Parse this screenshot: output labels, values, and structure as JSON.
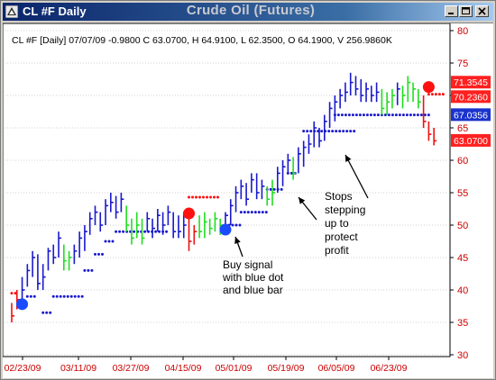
{
  "window": {
    "symbol_title": "CL #F Daily",
    "center_title": "Crude Oil (Futures)"
  },
  "quote_line": "CL #F [Daily] 07/07/09  -0.9800 C 63.0700, H 64.9100, L 62.3500, O 64.1900, V 256.9860K",
  "price_labels": [
    {
      "text": "71.3545",
      "bg": "#ff2020",
      "fg": "#ffffff",
      "value": 71.3545
    },
    {
      "text": "70.2360",
      "bg": "#ff2020",
      "fg": "#ffffff",
      "value": 70.236
    },
    {
      "text": "67.0356",
      "bg": "#1a33cc",
      "fg": "#ffffff",
      "value": 67.0356
    },
    {
      "text": "63.0700",
      "bg": "#ff2020",
      "fg": "#ffffff",
      "value": 63.07
    }
  ],
  "annotations": [
    {
      "id": "buy",
      "lines": [
        "Buy signal",
        "with blue dot",
        "and blue bar"
      ]
    },
    {
      "id": "stops",
      "lines": [
        "Stops",
        "stepping",
        "up to",
        "protect",
        "profit"
      ]
    }
  ],
  "colors": {
    "up_bar": "#1a1acc",
    "green_bar": "#22dd22",
    "red_bar": "#ee1111",
    "blue_dot": "#1a1acc",
    "red_dot": "#ff1010",
    "signal_blue": "#1a4bff",
    "signal_red": "#ff1010",
    "axis_text": "#cc0000",
    "grid": "#d0d0d0"
  },
  "chart_data": {
    "type": "candlestick-ohlc",
    "y_ticks": [
      "80",
      "75",
      "70",
      "65",
      "60",
      "55",
      "50",
      "45",
      "40",
      "35",
      "30"
    ],
    "ylim": [
      30,
      80
    ],
    "x_ticks": [
      "02/23/09",
      "03/11/09",
      "03/27/09",
      "04/15/09",
      "05/01/09",
      "05/19/09",
      "06/05/09",
      "06/23/09"
    ],
    "bars": [
      {
        "h": 38,
        "l": 35,
        "c": 36,
        "k": "red"
      },
      {
        "h": 40,
        "l": 37,
        "c": 38.5,
        "k": "red"
      },
      {
        "h": 42,
        "l": 38,
        "c": 40,
        "k": "blue"
      },
      {
        "h": 44,
        "l": 40.5,
        "c": 43,
        "k": "blue"
      },
      {
        "h": 46,
        "l": 42,
        "c": 45,
        "k": "blue"
      },
      {
        "h": 45.5,
        "l": 40,
        "c": 41,
        "k": "blue"
      },
      {
        "h": 44,
        "l": 40,
        "c": 42,
        "k": "blue"
      },
      {
        "h": 46.5,
        "l": 43,
        "c": 46,
        "k": "blue"
      },
      {
        "h": 47,
        "l": 44,
        "c": 45,
        "k": "blue"
      },
      {
        "h": 49,
        "l": 45,
        "c": 48,
        "k": "blue"
      },
      {
        "h": 47,
        "l": 43,
        "c": 44.5,
        "k": "green"
      },
      {
        "h": 46,
        "l": 43,
        "c": 45,
        "k": "green"
      },
      {
        "h": 47,
        "l": 44,
        "c": 46,
        "k": "blue"
      },
      {
        "h": 49,
        "l": 45,
        "c": 48,
        "k": "blue"
      },
      {
        "h": 50,
        "l": 46,
        "c": 49,
        "k": "blue"
      },
      {
        "h": 52,
        "l": 48.5,
        "c": 51,
        "k": "blue"
      },
      {
        "h": 53,
        "l": 50,
        "c": 52,
        "k": "blue"
      },
      {
        "h": 52,
        "l": 49,
        "c": 50,
        "k": "blue"
      },
      {
        "h": 54,
        "l": 50,
        "c": 53,
        "k": "blue"
      },
      {
        "h": 55,
        "l": 52,
        "c": 53.5,
        "k": "blue"
      },
      {
        "h": 54.5,
        "l": 51,
        "c": 52,
        "k": "blue"
      },
      {
        "h": 55,
        "l": 52,
        "c": 54,
        "k": "blue"
      },
      {
        "h": 53,
        "l": 49,
        "c": 50,
        "k": "green"
      },
      {
        "h": 51,
        "l": 47,
        "c": 48,
        "k": "green"
      },
      {
        "h": 52,
        "l": 48,
        "c": 50,
        "k": "green"
      },
      {
        "h": 51,
        "l": 47,
        "c": 48,
        "k": "green"
      },
      {
        "h": 52,
        "l": 49,
        "c": 51,
        "k": "blue"
      },
      {
        "h": 51,
        "l": 48,
        "c": 49.5,
        "k": "blue"
      },
      {
        "h": 52.5,
        "l": 49,
        "c": 51.5,
        "k": "blue"
      },
      {
        "h": 52,
        "l": 48.5,
        "c": 50,
        "k": "blue"
      },
      {
        "h": 53,
        "l": 50,
        "c": 52,
        "k": "blue"
      },
      {
        "h": 52,
        "l": 48,
        "c": 49,
        "k": "blue"
      },
      {
        "h": 51.5,
        "l": 48,
        "c": 49,
        "k": "blue"
      },
      {
        "h": 52,
        "l": 48,
        "c": 50,
        "k": "blue"
      },
      {
        "h": 51,
        "l": 46,
        "c": 47.5,
        "k": "red"
      },
      {
        "h": 50,
        "l": 47,
        "c": 49,
        "k": "red"
      },
      {
        "h": 51.5,
        "l": 48,
        "c": 49,
        "k": "green"
      },
      {
        "h": 52,
        "l": 48,
        "c": 50.5,
        "k": "green"
      },
      {
        "h": 51,
        "l": 48.5,
        "c": 49.5,
        "k": "green"
      },
      {
        "h": 52,
        "l": 49,
        "c": 51,
        "k": "green"
      },
      {
        "h": 51,
        "l": 48.5,
        "c": 50,
        "k": "green"
      },
      {
        "h": 52,
        "l": 49,
        "c": 51.5,
        "k": "blue"
      },
      {
        "h": 54,
        "l": 50,
        "c": 53,
        "k": "blue"
      },
      {
        "h": 56,
        "l": 52,
        "c": 55,
        "k": "blue"
      },
      {
        "h": 57,
        "l": 54,
        "c": 56,
        "k": "blue"
      },
      {
        "h": 56.5,
        "l": 53,
        "c": 54,
        "k": "blue"
      },
      {
        "h": 58,
        "l": 55,
        "c": 57,
        "k": "blue"
      },
      {
        "h": 58,
        "l": 54,
        "c": 55,
        "k": "blue"
      },
      {
        "h": 57,
        "l": 54,
        "c": 56,
        "k": "blue"
      },
      {
        "h": 56,
        "l": 53,
        "c": 54,
        "k": "green"
      },
      {
        "h": 57,
        "l": 53,
        "c": 55,
        "k": "green"
      },
      {
        "h": 59,
        "l": 55,
        "c": 58,
        "k": "blue"
      },
      {
        "h": 60,
        "l": 56,
        "c": 59,
        "k": "blue"
      },
      {
        "h": 61,
        "l": 58,
        "c": 60,
        "k": "blue"
      },
      {
        "h": 60.5,
        "l": 57,
        "c": 58,
        "k": "green"
      },
      {
        "h": 62,
        "l": 58,
        "c": 61,
        "k": "blue"
      },
      {
        "h": 63,
        "l": 59,
        "c": 62,
        "k": "blue"
      },
      {
        "h": 64,
        "l": 61,
        "c": 62.5,
        "k": "blue"
      },
      {
        "h": 66,
        "l": 62,
        "c": 65,
        "k": "blue"
      },
      {
        "h": 65,
        "l": 62,
        "c": 63,
        "k": "blue"
      },
      {
        "h": 67,
        "l": 63,
        "c": 66,
        "k": "blue"
      },
      {
        "h": 69,
        "l": 65,
        "c": 68,
        "k": "blue"
      },
      {
        "h": 70,
        "l": 66,
        "c": 69,
        "k": "blue"
      },
      {
        "h": 71,
        "l": 68,
        "c": 70,
        "k": "blue"
      },
      {
        "h": 72,
        "l": 69,
        "c": 70.5,
        "k": "blue"
      },
      {
        "h": 73.5,
        "l": 70,
        "c": 72,
        "k": "blue"
      },
      {
        "h": 73,
        "l": 70,
        "c": 71,
        "k": "blue"
      },
      {
        "h": 72.5,
        "l": 69,
        "c": 70,
        "k": "blue"
      },
      {
        "h": 72,
        "l": 69,
        "c": 71,
        "k": "blue"
      },
      {
        "h": 71.5,
        "l": 69,
        "c": 70,
        "k": "blue"
      },
      {
        "h": 72,
        "l": 69,
        "c": 70.5,
        "k": "blue"
      },
      {
        "h": 71,
        "l": 67,
        "c": 68,
        "k": "green"
      },
      {
        "h": 70.5,
        "l": 67,
        "c": 69,
        "k": "green"
      },
      {
        "h": 71,
        "l": 68,
        "c": 70,
        "k": "green"
      },
      {
        "h": 72,
        "l": 68.5,
        "c": 71,
        "k": "blue"
      },
      {
        "h": 71.5,
        "l": 68,
        "c": 70,
        "k": "green"
      },
      {
        "h": 73,
        "l": 69,
        "c": 72,
        "k": "green"
      },
      {
        "h": 72,
        "l": 69,
        "c": 71,
        "k": "green"
      },
      {
        "h": 71,
        "l": 68,
        "c": 69,
        "k": "green"
      },
      {
        "h": 70,
        "l": 65,
        "c": 66,
        "k": "red"
      },
      {
        "h": 66,
        "l": 63,
        "c": 64,
        "k": "red"
      },
      {
        "h": 65,
        "l": 62.3,
        "c": 63,
        "k": "red"
      }
    ],
    "stop_segments": [
      {
        "from": 0,
        "to": 1,
        "y": 39.5,
        "c": "red"
      },
      {
        "from": 3,
        "to": 5,
        "y": 39,
        "c": "blue"
      },
      {
        "from": 6,
        "to": 8,
        "y": 36.5,
        "c": "blue"
      },
      {
        "from": 8,
        "to": 14,
        "y": 39,
        "c": "blue"
      },
      {
        "from": 14,
        "to": 16,
        "y": 43,
        "c": "blue"
      },
      {
        "from": 16,
        "to": 18,
        "y": 45.5,
        "c": "blue"
      },
      {
        "from": 18,
        "to": 20,
        "y": 47.5,
        "c": "blue"
      },
      {
        "from": 20,
        "to": 30,
        "y": 49,
        "c": "blue"
      },
      {
        "from": 34,
        "to": 40,
        "y": 54.3,
        "c": "red"
      },
      {
        "from": 41,
        "to": 44,
        "y": 50,
        "c": "blue"
      },
      {
        "from": 44,
        "to": 49,
        "y": 52,
        "c": "blue"
      },
      {
        "from": 49,
        "to": 52,
        "y": 55.5,
        "c": "blue"
      },
      {
        "from": 53,
        "to": 55,
        "y": 58,
        "c": "blue"
      },
      {
        "from": 56,
        "to": 66,
        "y": 64.5,
        "c": "blue"
      },
      {
        "from": 62,
        "to": 80,
        "y": 67,
        "c": "blue"
      },
      {
        "from": 80,
        "to": 83,
        "y": 70.2,
        "c": "red"
      }
    ],
    "signals": [
      {
        "bar": 2,
        "y": 37.8,
        "c": "blue"
      },
      {
        "bar": 34,
        "y": 51.8,
        "c": "red"
      },
      {
        "bar": 41,
        "y": 49.3,
        "c": "blue"
      },
      {
        "bar": 80,
        "y": 71.3,
        "c": "red"
      }
    ]
  }
}
